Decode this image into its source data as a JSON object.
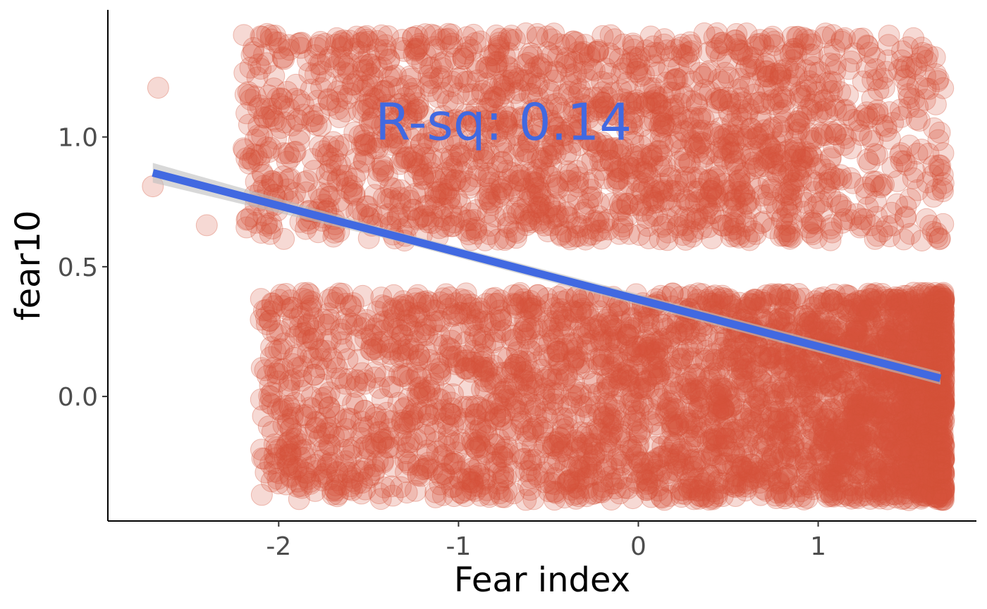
{
  "chart_data": {
    "type": "scatter",
    "title": "",
    "xlabel": "Fear index",
    "ylabel": "fear10",
    "xlim": [
      -2.95,
      1.88
    ],
    "ylim": [
      -0.48,
      1.49
    ],
    "x_ticks": [
      {
        "value": -2,
        "label": "-2"
      },
      {
        "value": -1,
        "label": "-1"
      },
      {
        "value": 0,
        "label": "0"
      },
      {
        "value": 1,
        "label": "1"
      }
    ],
    "y_ticks": [
      {
        "value": 0.0,
        "label": "0.0"
      },
      {
        "value": 0.5,
        "label": "0.5"
      },
      {
        "value": 1.0,
        "label": "1.0"
      }
    ],
    "annotation": {
      "text": "R-sq: 0.14",
      "x": -0.75,
      "y": 1.06
    },
    "grid": false,
    "colors": {
      "points": "#d4543a",
      "fit_line": "#4169e1",
      "confidence_band": "#bebebe",
      "axis": "#000000"
    },
    "jitter": {
      "y_amplitude": 0.4,
      "x_min": -2.2,
      "x_max": 1.7
    },
    "point_clusters": [
      {
        "group": "fear10 = 1 (jittered)",
        "y_center": 1,
        "x_range": [
          -2.2,
          1.7
        ],
        "approx_count": 1900
      },
      {
        "group": "fear10 = 0 (jittered)",
        "y_center": 0,
        "x_range": [
          -2.1,
          1.7
        ],
        "approx_count": 3600
      }
    ],
    "outliers": [
      {
        "x": -2.67,
        "y": 1.19
      },
      {
        "x": -2.7,
        "y": 0.81
      },
      {
        "x": -2.4,
        "y": 0.66
      }
    ],
    "fit_line": {
      "x": [
        -2.7,
        1.68
      ],
      "y": [
        0.862,
        0.07
      ]
    }
  }
}
